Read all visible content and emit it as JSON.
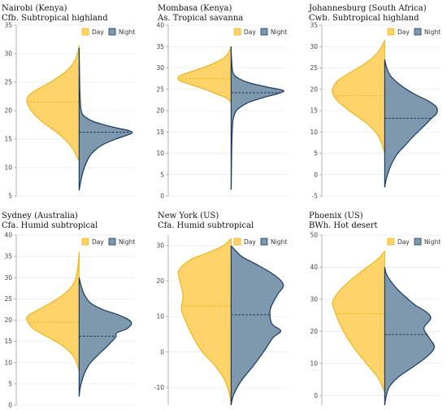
{
  "colors": {
    "day_fill": "#FDD36A",
    "day_stroke": "#F1B418",
    "night_fill": "#7E98AD",
    "night_stroke": "#183A66",
    "grid": "#E6EAF0",
    "axis": "#9AA3AD"
  },
  "legend": {
    "day_label": "Day",
    "night_label": "Night",
    "placement": "top-right"
  },
  "chart_data": [
    {
      "type": "violin",
      "title_line1": "Nairobi (Kenya)",
      "title_line2": "Cfb. Subtropical highland",
      "yticks": [
        5,
        10,
        15,
        20,
        25,
        30,
        35
      ],
      "ylim": [
        5,
        35
      ],
      "day": {
        "median": 21.5,
        "profile": [
          [
            11.2,
            0
          ],
          [
            12,
            0.05
          ],
          [
            13,
            0.1
          ],
          [
            14,
            0.18
          ],
          [
            15,
            0.28
          ],
          [
            16,
            0.4
          ],
          [
            17,
            0.55
          ],
          [
            18,
            0.7
          ],
          [
            19,
            0.82
          ],
          [
            20,
            0.92
          ],
          [
            21,
            0.98
          ],
          [
            22,
            1.0
          ],
          [
            23,
            0.92
          ],
          [
            24,
            0.75
          ],
          [
            25,
            0.55
          ],
          [
            26,
            0.38
          ],
          [
            27,
            0.24
          ],
          [
            28,
            0.14
          ],
          [
            29,
            0.07
          ],
          [
            30,
            0.03
          ],
          [
            31.5,
            0
          ]
        ]
      },
      "night": {
        "median": 16.2,
        "profile": [
          [
            6,
            0
          ],
          [
            8,
            0.04
          ],
          [
            10,
            0.1
          ],
          [
            12,
            0.2
          ],
          [
            13,
            0.3
          ],
          [
            14,
            0.45
          ],
          [
            15,
            0.7
          ],
          [
            16,
            1.0
          ],
          [
            16.5,
            0.95
          ],
          [
            17,
            0.7
          ],
          [
            18,
            0.3
          ],
          [
            19,
            0.1
          ],
          [
            20,
            0.04
          ],
          [
            22,
            0.02
          ],
          [
            25,
            0.01
          ],
          [
            28,
            0.005
          ],
          [
            31,
            0
          ]
        ]
      }
    },
    {
      "type": "violin",
      "title_line1": "Mombasa (Kenya)",
      "title_line2": "As. Tropical savanna",
      "yticks": [
        0,
        5,
        10,
        15,
        20,
        25,
        30,
        35,
        40
      ],
      "ylim": [
        0,
        40
      ],
      "day": {
        "median": 27.5,
        "profile": [
          [
            22,
            0
          ],
          [
            23,
            0.1
          ],
          [
            24,
            0.3
          ],
          [
            25,
            0.5
          ],
          [
            26,
            0.75
          ],
          [
            27,
            0.98
          ],
          [
            28,
            1.0
          ],
          [
            29,
            0.8
          ],
          [
            30,
            0.55
          ],
          [
            31,
            0.35
          ],
          [
            32,
            0.18
          ],
          [
            33,
            0.08
          ],
          [
            34,
            0.03
          ],
          [
            35,
            0
          ]
        ]
      },
      "night": {
        "median": 24.2,
        "profile": [
          [
            1.5,
            0
          ],
          [
            5,
            0.005
          ],
          [
            10,
            0.01
          ],
          [
            15,
            0.02
          ],
          [
            18,
            0.04
          ],
          [
            20,
            0.1
          ],
          [
            21,
            0.2
          ],
          [
            22,
            0.35
          ],
          [
            23,
            0.6
          ],
          [
            24,
            0.9
          ],
          [
            24.7,
            1.0
          ],
          [
            25.5,
            0.7
          ],
          [
            26.5,
            0.35
          ],
          [
            27.5,
            0.15
          ],
          [
            28.5,
            0.05
          ],
          [
            30,
            0.02
          ],
          [
            33,
            0.005
          ],
          [
            35,
            0
          ]
        ]
      }
    },
    {
      "type": "violin",
      "title_line1": "Johannesburg (South Africa)",
      "title_line2": "Cwb. Subtropical highland",
      "yticks": [
        -5,
        0,
        5,
        10,
        15,
        20,
        25,
        30,
        35
      ],
      "ylim": [
        -5,
        35
      ],
      "day": {
        "median": 18.5,
        "profile": [
          [
            5,
            0
          ],
          [
            7,
            0.05
          ],
          [
            9,
            0.12
          ],
          [
            11,
            0.25
          ],
          [
            13,
            0.45
          ],
          [
            15,
            0.68
          ],
          [
            17,
            0.88
          ],
          [
            18.5,
            0.98
          ],
          [
            20,
            1.0
          ],
          [
            22,
            0.9
          ],
          [
            24,
            0.65
          ],
          [
            26,
            0.38
          ],
          [
            28,
            0.18
          ],
          [
            30,
            0.06
          ],
          [
            31.5,
            0
          ]
        ]
      },
      "night": {
        "median": 13.2,
        "profile": [
          [
            -3,
            0
          ],
          [
            -1,
            0.03
          ],
          [
            1,
            0.08
          ],
          [
            3,
            0.15
          ],
          [
            5,
            0.25
          ],
          [
            7,
            0.4
          ],
          [
            9,
            0.55
          ],
          [
            11,
            0.72
          ],
          [
            13,
            0.88
          ],
          [
            14.5,
            1.0
          ],
          [
            16,
            0.98
          ],
          [
            17.5,
            0.8
          ],
          [
            19,
            0.55
          ],
          [
            21,
            0.3
          ],
          [
            23,
            0.12
          ],
          [
            25,
            0.04
          ],
          [
            27,
            0
          ]
        ]
      }
    },
    {
      "type": "violin",
      "title_line1": "Sydney (Australia)",
      "title_line2": "Cfa. Humid subtropical",
      "yticks": [
        0,
        5,
        10,
        15,
        20,
        25,
        30,
        35,
        40
      ],
      "ylim": [
        0,
        40
      ],
      "day": {
        "median": 19.5,
        "profile": [
          [
            8,
            0
          ],
          [
            10,
            0.05
          ],
          [
            12,
            0.14
          ],
          [
            14,
            0.32
          ],
          [
            16,
            0.6
          ],
          [
            18,
            0.88
          ],
          [
            20,
            1.0
          ],
          [
            21,
            0.98
          ],
          [
            22,
            0.85
          ],
          [
            24,
            0.55
          ],
          [
            26,
            0.3
          ],
          [
            28,
            0.14
          ],
          [
            30,
            0.06
          ],
          [
            33,
            0.02
          ],
          [
            36,
            0
          ]
        ]
      },
      "night": {
        "median": 16.2,
        "profile": [
          [
            2,
            0
          ],
          [
            4,
            0.02
          ],
          [
            6,
            0.06
          ],
          [
            8,
            0.12
          ],
          [
            10,
            0.22
          ],
          [
            12,
            0.38
          ],
          [
            14,
            0.55
          ],
          [
            16,
            0.7
          ],
          [
            17,
            0.72
          ],
          [
            18,
            0.92
          ],
          [
            19.5,
            1.0
          ],
          [
            21,
            0.8
          ],
          [
            22.5,
            0.45
          ],
          [
            24,
            0.22
          ],
          [
            26,
            0.1
          ],
          [
            28,
            0.04
          ],
          [
            30,
            0
          ]
        ]
      }
    },
    {
      "type": "violin",
      "title_line1": "New York (US)",
      "title_line2": "Cfa. Humid subtropical",
      "yticks": [
        -10,
        0,
        10,
        20,
        30
      ],
      "ylim": [
        -15,
        33
      ],
      "day": {
        "median": 13,
        "profile": [
          [
            -15,
            0
          ],
          [
            -12,
            0.03
          ],
          [
            -8,
            0.12
          ],
          [
            -4,
            0.3
          ],
          [
            0,
            0.55
          ],
          [
            4,
            0.72
          ],
          [
            8,
            0.85
          ],
          [
            12,
            0.95
          ],
          [
            16,
            0.92
          ],
          [
            20,
            0.98
          ],
          [
            23,
            1.0
          ],
          [
            26,
            0.78
          ],
          [
            28,
            0.45
          ],
          [
            30,
            0.15
          ],
          [
            32,
            0
          ]
        ]
      },
      "night": {
        "median": 10.5,
        "profile": [
          [
            -15,
            0
          ],
          [
            -12,
            0.05
          ],
          [
            -8,
            0.2
          ],
          [
            -4,
            0.42
          ],
          [
            0,
            0.62
          ],
          [
            4,
            0.8
          ],
          [
            6,
            0.95
          ],
          [
            8,
            0.78
          ],
          [
            12,
            0.75
          ],
          [
            16,
            0.88
          ],
          [
            19,
            1.0
          ],
          [
            22,
            0.8
          ],
          [
            25,
            0.45
          ],
          [
            27,
            0.2
          ],
          [
            30,
            0
          ]
        ]
      }
    },
    {
      "type": "violin",
      "title_line1": "Phoenix (US)",
      "title_line2": "BWh. Hot desert",
      "yticks": [
        0,
        10,
        20,
        30,
        40,
        50
      ],
      "ylim": [
        -3,
        50
      ],
      "day": {
        "median": 25.5,
        "profile": [
          [
            1,
            0
          ],
          [
            3,
            0.05
          ],
          [
            6,
            0.15
          ],
          [
            10,
            0.35
          ],
          [
            14,
            0.55
          ],
          [
            18,
            0.72
          ],
          [
            22,
            0.85
          ],
          [
            26,
            0.95
          ],
          [
            29,
            1.0
          ],
          [
            32,
            0.9
          ],
          [
            35,
            0.72
          ],
          [
            38,
            0.5
          ],
          [
            41,
            0.25
          ],
          [
            43,
            0.1
          ],
          [
            45,
            0
          ]
        ]
      },
      "night": {
        "median": 19,
        "profile": [
          [
            -3,
            0
          ],
          [
            0,
            0.03
          ],
          [
            3,
            0.1
          ],
          [
            6,
            0.28
          ],
          [
            9,
            0.55
          ],
          [
            12,
            0.8
          ],
          [
            15,
            0.95
          ],
          [
            18,
            0.85
          ],
          [
            21,
            0.75
          ],
          [
            24,
            0.88
          ],
          [
            26,
            0.8
          ],
          [
            28,
            0.6
          ],
          [
            30,
            0.45
          ],
          [
            33,
            0.25
          ],
          [
            36,
            0.1
          ],
          [
            38,
            0.03
          ],
          [
            40,
            0
          ]
        ]
      }
    }
  ]
}
